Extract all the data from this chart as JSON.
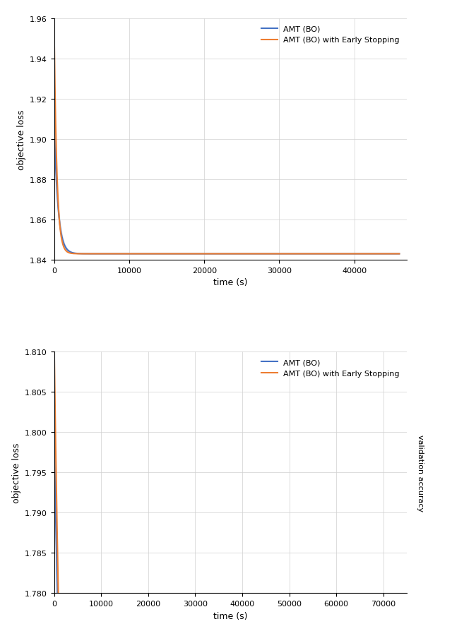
{
  "plot1": {
    "xlabel": "time (s)",
    "ylabel": "objective loss",
    "xlim": [
      0,
      47000
    ],
    "ylim": [
      1.84,
      1.96
    ],
    "yticks": [
      1.84,
      1.86,
      1.88,
      1.9,
      1.92,
      1.94,
      1.96
    ],
    "xticks": [
      0,
      10000,
      20000,
      30000,
      40000
    ],
    "blue_color": "#4472C4",
    "orange_color": "#ED7D31",
    "blue_fill": "#AEC6E8",
    "legend_labels": [
      "AMT (BO)",
      "AMT (BO) with Early Stopping"
    ]
  },
  "plot2": {
    "xlabel": "time (s)",
    "ylabel": "objective loss",
    "xlim": [
      0,
      75000
    ],
    "ylim": [
      1.78,
      1.81
    ],
    "yticks": [
      1.78,
      1.785,
      1.79,
      1.795,
      1.8,
      1.805,
      1.81
    ],
    "xticks": [
      0,
      10000,
      20000,
      30000,
      40000,
      50000,
      60000,
      70000
    ],
    "blue_color": "#4472C4",
    "orange_color": "#ED7D31",
    "blue_fill": "#AEC6E8",
    "legend_labels": [
      "AMT (BO)",
      "AMT (BO) with Early Stopping"
    ],
    "right_label": "validation accuracy"
  }
}
